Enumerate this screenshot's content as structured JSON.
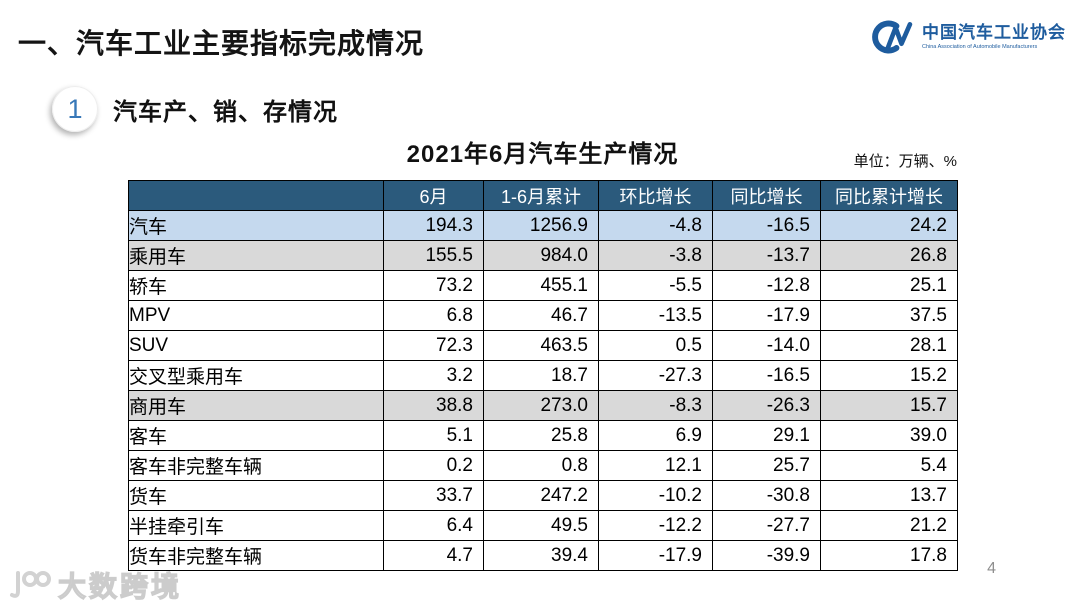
{
  "header": {
    "title": "一、汽车工业主要指标完成情况",
    "logo": {
      "name_cn": "中国汽车工业协会",
      "name_en": "China Association of Automobile Manufacturers"
    }
  },
  "section": {
    "number": "1",
    "title": "汽车产、销、存情况"
  },
  "unit_label": "单位：万辆、%",
  "watermark": "大数跨境",
  "page_number": "4",
  "colors": {
    "header_bg": "#2B5A7C",
    "row_blue": "#C5D9EE",
    "row_gray": "#D9D9D9",
    "logo_blue": "#1E5C9E",
    "accent_blue": "#3878B8",
    "title_color": "#141414",
    "page_number_color": "#8f8f8f",
    "watermark_color": "#d7d7d7"
  },
  "chart_data": {
    "type": "table",
    "title": "2021年6月汽车生产情况",
    "unit": "万辆、%",
    "columns": [
      "",
      "6月",
      "1-6月累计",
      "环比增长",
      "同比增长",
      "同比累计增长"
    ],
    "rows": [
      {
        "label": "汽车",
        "indent": 0,
        "style": "blue",
        "values": [
          "194.3",
          "1256.9",
          "-4.8",
          "-16.5",
          "24.2"
        ]
      },
      {
        "label": "乘用车",
        "indent": 1,
        "style": "gray",
        "values": [
          "155.5",
          "984.0",
          "-3.8",
          "-13.7",
          "26.8"
        ]
      },
      {
        "label": "轿车",
        "indent": 2,
        "style": "white",
        "values": [
          "73.2",
          "455.1",
          "-5.5",
          "-12.8",
          "25.1"
        ]
      },
      {
        "label": "MPV",
        "indent": 2,
        "style": "white",
        "values": [
          "6.8",
          "46.7",
          "-13.5",
          "-17.9",
          "37.5"
        ]
      },
      {
        "label": "SUV",
        "indent": 2,
        "style": "white",
        "values": [
          "72.3",
          "463.5",
          "0.5",
          "-14.0",
          "28.1"
        ]
      },
      {
        "label": "交叉型乘用车",
        "indent": 2,
        "style": "white",
        "values": [
          "3.2",
          "18.7",
          "-27.3",
          "-16.5",
          "15.2"
        ]
      },
      {
        "label": "商用车",
        "indent": 1,
        "style": "gray",
        "values": [
          "38.8",
          "273.0",
          "-8.3",
          "-26.3",
          "15.7"
        ]
      },
      {
        "label": "客车",
        "indent": 2,
        "style": "white",
        "values": [
          "5.1",
          "25.8",
          "6.9",
          "29.1",
          "39.0"
        ]
      },
      {
        "label": "客车非完整车辆",
        "indent": 3,
        "style": "white",
        "values": [
          "0.2",
          "0.8",
          "12.1",
          "25.7",
          "5.4"
        ]
      },
      {
        "label": "货车",
        "indent": 2,
        "style": "white",
        "values": [
          "33.7",
          "247.2",
          "-10.2",
          "-30.8",
          "13.7"
        ]
      },
      {
        "label": "半挂牵引车",
        "indent": 3,
        "style": "white",
        "values": [
          "6.4",
          "49.5",
          "-12.2",
          "-27.7",
          "21.2"
        ]
      },
      {
        "label": "货车非完整车辆",
        "indent": 3,
        "style": "white",
        "values": [
          "4.7",
          "39.4",
          "-17.9",
          "-39.9",
          "17.8"
        ]
      }
    ]
  }
}
